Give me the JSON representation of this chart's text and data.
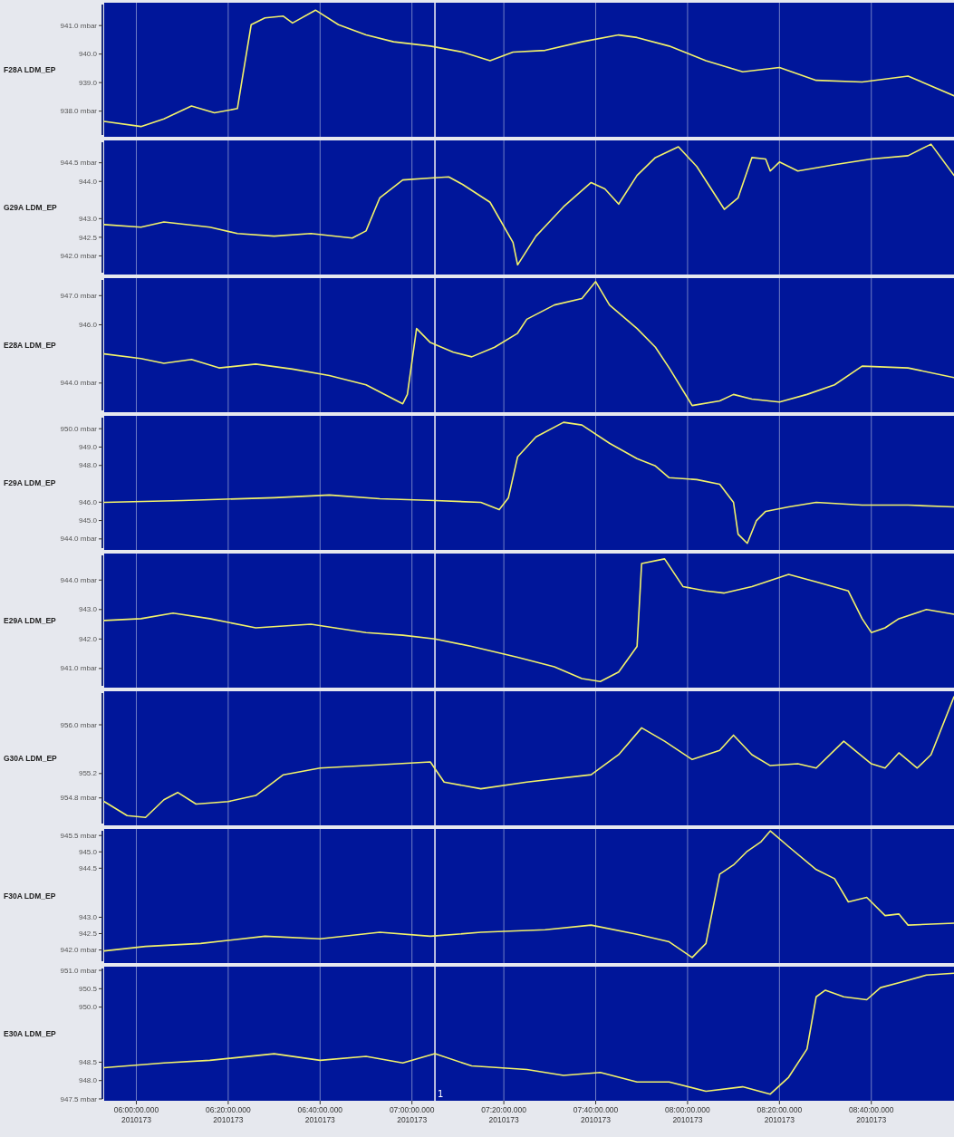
{
  "chart_data": [
    {
      "type": "line",
      "ylabel": "F28A LDM_EP",
      "color": "#f2f26a",
      "grid": "x",
      "tick_labels": "y",
      "xlim": [
        "2010-06-22T05:53",
        "2010-06-22T08:58"
      ],
      "xticks": [
        {
          "value": "2010-06-22T06:00",
          "label": null
        },
        {
          "value": "2010-06-22T06:20",
          "label": null
        },
        {
          "value": "2010-06-22T06:40",
          "label": null
        },
        {
          "value": "2010-06-22T07:00",
          "label": null
        },
        {
          "value": "2010-06-22T07:20",
          "label": null
        },
        {
          "value": "2010-06-22T07:40",
          "label": null
        },
        {
          "value": "2010-06-22T08:00",
          "label": null
        },
        {
          "value": "2010-06-22T08:20",
          "label": null
        },
        {
          "value": "2010-06-22T08:40",
          "label": null
        }
      ],
      "ylim": [
        937.1,
        941.8
      ],
      "yticks": [
        {
          "value": 941,
          "label": "941.0 mbar"
        },
        {
          "value": 940,
          "label": "940.0"
        },
        {
          "value": 939,
          "label": "939.0"
        },
        {
          "value": 938,
          "label": "938.0 mbar"
        }
      ],
      "ref_lines": [
        {
          "axis": "x",
          "value": "2010-06-22T07:05",
          "color": "#e8e8f0"
        }
      ],
      "x": [
        "2010-06-22T05:53",
        "2010-06-22T06:01",
        "2010-06-22T06:06",
        "2010-06-22T06:12",
        "2010-06-22T06:17",
        "2010-06-22T06:22",
        "2010-06-22T06:23",
        "2010-06-22T06:25",
        "2010-06-22T06:28",
        "2010-06-22T06:32",
        "2010-06-22T06:34",
        "2010-06-22T06:39",
        "2010-06-22T06:44",
        "2010-06-22T06:50",
        "2010-06-22T06:56",
        "2010-06-22T07:04",
        "2010-06-22T07:11",
        "2010-06-22T07:17",
        "2010-06-22T07:22",
        "2010-06-22T07:29",
        "2010-06-22T07:37",
        "2010-06-22T07:45",
        "2010-06-22T07:49",
        "2010-06-22T07:56",
        "2010-06-22T08:04",
        "2010-06-22T08:12",
        "2010-06-22T08:20",
        "2010-06-22T08:28",
        "2010-06-22T08:38",
        "2010-06-22T08:48",
        "2010-06-22T08:58"
      ],
      "values": [
        937.64,
        937.46,
        937.73,
        938.18,
        937.94,
        938.09,
        939.08,
        941.03,
        941.27,
        941.33,
        941.09,
        941.54,
        941.03,
        940.67,
        940.43,
        940.28,
        940.07,
        939.77,
        940.07,
        940.13,
        940.43,
        940.67,
        940.58,
        940.28,
        939.77,
        939.38,
        939.53,
        939.08,
        939.02,
        939.23,
        938.54
      ]
    },
    {
      "type": "line",
      "ylabel": "G29A LDM_EP",
      "color": "#f2f26a",
      "grid": "x",
      "tick_labels": "y",
      "xlim": [
        "2010-06-22T05:53",
        "2010-06-22T08:58"
      ],
      "xticks": [
        {
          "value": "2010-06-22T06:00",
          "label": null
        },
        {
          "value": "2010-06-22T06:20",
          "label": null
        },
        {
          "value": "2010-06-22T06:40",
          "label": null
        },
        {
          "value": "2010-06-22T07:00",
          "label": null
        },
        {
          "value": "2010-06-22T07:20",
          "label": null
        },
        {
          "value": "2010-06-22T07:40",
          "label": null
        },
        {
          "value": "2010-06-22T08:00",
          "label": null
        },
        {
          "value": "2010-06-22T08:20",
          "label": null
        },
        {
          "value": "2010-06-22T08:40",
          "label": null
        }
      ],
      "ylim": [
        941.5,
        945.1
      ],
      "yticks": [
        {
          "value": 944.5,
          "label": "944.5 mbar"
        },
        {
          "value": 944,
          "label": "944.0"
        },
        {
          "value": 943,
          "label": "943.0"
        },
        {
          "value": 942.5,
          "label": "942.5"
        },
        {
          "value": 942,
          "label": "942.0 mbar"
        }
      ],
      "ref_lines": [
        {
          "axis": "x",
          "value": "2010-06-22T07:05",
          "color": "#e8e8f0"
        }
      ],
      "x": [
        "2010-06-22T05:53",
        "2010-06-22T06:01",
        "2010-06-22T06:06",
        "2010-06-22T06:16",
        "2010-06-22T06:22",
        "2010-06-22T06:30",
        "2010-06-22T06:38",
        "2010-06-22T06:47",
        "2010-06-22T06:50",
        "2010-06-22T06:53",
        "2010-06-22T06:58",
        "2010-06-22T07:04",
        "2010-06-22T07:08",
        "2010-06-22T07:11",
        "2010-06-22T07:17",
        "2010-06-22T07:22",
        "2010-06-22T07:23",
        "2010-06-22T07:27",
        "2010-06-22T07:33",
        "2010-06-22T07:39",
        "2010-06-22T07:42",
        "2010-06-22T07:45",
        "2010-06-22T07:49",
        "2010-06-22T07:53",
        "2010-06-22T07:58",
        "2010-06-22T08:02",
        "2010-06-22T08:08",
        "2010-06-22T08:11",
        "2010-06-22T08:14",
        "2010-06-22T08:17",
        "2010-06-22T08:18",
        "2010-06-22T08:20",
        "2010-06-22T08:24",
        "2010-06-22T08:32",
        "2010-06-22T08:40",
        "2010-06-22T08:48",
        "2010-06-22T08:53",
        "2010-06-22T08:58"
      ],
      "values": [
        942.84,
        942.77,
        942.91,
        942.77,
        942.6,
        942.53,
        942.6,
        942.48,
        942.67,
        943.56,
        944.04,
        944.09,
        944.12,
        943.92,
        943.44,
        942.36,
        941.76,
        942.53,
        943.32,
        943.97,
        943.8,
        943.39,
        944.16,
        944.64,
        944.93,
        944.4,
        943.25,
        943.56,
        944.64,
        944.6,
        944.28,
        944.52,
        944.28,
        944.45,
        944.6,
        944.69,
        945.0,
        944.16
      ]
    },
    {
      "type": "line",
      "ylabel": "E28A LDM_EP",
      "color": "#f2f26a",
      "grid": "x",
      "tick_labels": "y",
      "xlim": [
        "2010-06-22T05:53",
        "2010-06-22T08:58"
      ],
      "xticks": [
        {
          "value": "2010-06-22T06:00",
          "label": null
        },
        {
          "value": "2010-06-22T06:20",
          "label": null
        },
        {
          "value": "2010-06-22T06:40",
          "label": null
        },
        {
          "value": "2010-06-22T07:00",
          "label": null
        },
        {
          "value": "2010-06-22T07:20",
          "label": null
        },
        {
          "value": "2010-06-22T07:40",
          "label": null
        },
        {
          "value": "2010-06-22T08:00",
          "label": null
        },
        {
          "value": "2010-06-22T08:20",
          "label": null
        },
        {
          "value": "2010-06-22T08:40",
          "label": null
        }
      ],
      "ylim": [
        943.0,
        947.6
      ],
      "yticks": [
        {
          "value": 947,
          "label": "947.0 mbar"
        },
        {
          "value": 946,
          "label": "946.0"
        },
        {
          "value": 944,
          "label": "944.0 mbar"
        }
      ],
      "ref_lines": [
        {
          "axis": "x",
          "value": "2010-06-22T07:05",
          "color": "#e8e8f0"
        }
      ],
      "x": [
        "2010-06-22T05:53",
        "2010-06-22T06:01",
        "2010-06-22T06:06",
        "2010-06-22T06:12",
        "2010-06-22T06:18",
        "2010-06-22T06:26",
        "2010-06-22T06:34",
        "2010-06-22T06:42",
        "2010-06-22T06:50",
        "2010-06-22T06:58",
        "2010-06-22T06:59",
        "2010-06-22T07:01",
        "2010-06-22T07:04",
        "2010-06-22T07:09",
        "2010-06-22T07:13",
        "2010-06-22T07:18",
        "2010-06-22T07:23",
        "2010-06-22T07:25",
        "2010-06-22T07:31",
        "2010-06-22T07:37",
        "2010-06-22T07:40",
        "2010-06-22T07:43",
        "2010-06-22T07:49",
        "2010-06-22T07:53",
        "2010-06-22T07:56",
        "2010-06-22T08:01",
        "2010-06-22T08:07",
        "2010-06-22T08:10",
        "2010-06-22T08:14",
        "2010-06-22T08:20",
        "2010-06-22T08:26",
        "2010-06-22T08:32",
        "2010-06-22T08:38",
        "2010-06-22T08:48",
        "2010-06-22T08:58"
      ],
      "values": [
        945.0,
        944.84,
        944.68,
        944.81,
        944.52,
        944.65,
        944.48,
        944.26,
        943.94,
        943.29,
        943.61,
        945.87,
        945.39,
        945.06,
        944.9,
        945.23,
        945.71,
        946.19,
        946.68,
        946.9,
        947.48,
        946.68,
        945.87,
        945.23,
        944.52,
        943.23,
        943.39,
        943.61,
        943.45,
        943.35,
        943.61,
        943.94,
        944.58,
        944.52,
        944.19
      ]
    },
    {
      "type": "line",
      "ylabel": "F29A LDM_EP",
      "color": "#f2f26a",
      "grid": "x",
      "tick_labels": "y",
      "xlim": [
        "2010-06-22T05:53",
        "2010-06-22T08:58"
      ],
      "xticks": [
        {
          "value": "2010-06-22T06:00",
          "label": null
        },
        {
          "value": "2010-06-22T06:20",
          "label": null
        },
        {
          "value": "2010-06-22T06:40",
          "label": null
        },
        {
          "value": "2010-06-22T07:00",
          "label": null
        },
        {
          "value": "2010-06-22T07:20",
          "label": null
        },
        {
          "value": "2010-06-22T07:40",
          "label": null
        },
        {
          "value": "2010-06-22T08:00",
          "label": null
        },
        {
          "value": "2010-06-22T08:20",
          "label": null
        },
        {
          "value": "2010-06-22T08:40",
          "label": null
        }
      ],
      "ylim": [
        943.4,
        950.7
      ],
      "yticks": [
        {
          "value": 950,
          "label": "950.0 mbar"
        },
        {
          "value": 949,
          "label": "949.0"
        },
        {
          "value": 948,
          "label": "948.0"
        },
        {
          "value": 946,
          "label": "946.0"
        },
        {
          "value": 945,
          "label": "945.0"
        },
        {
          "value": 944,
          "label": "944.0 mbar"
        }
      ],
      "ref_lines": [
        {
          "axis": "x",
          "value": "2010-06-22T07:05",
          "color": "#e8e8f0"
        }
      ],
      "x": [
        "2010-06-22T05:53",
        "2010-06-22T06:10",
        "2010-06-22T06:30",
        "2010-06-22T06:42",
        "2010-06-22T06:53",
        "2010-06-22T07:05",
        "2010-06-22T07:15",
        "2010-06-22T07:19",
        "2010-06-22T07:21",
        "2010-06-22T07:23",
        "2010-06-22T07:27",
        "2010-06-22T07:33",
        "2010-06-22T07:37",
        "2010-06-22T07:43",
        "2010-06-22T07:49",
        "2010-06-22T07:53",
        "2010-06-22T07:56",
        "2010-06-22T08:02",
        "2010-06-22T08:07",
        "2010-06-22T08:10",
        "2010-06-22T08:11",
        "2010-06-22T08:13",
        "2010-06-22T08:15",
        "2010-06-22T08:17",
        "2010-06-22T08:22",
        "2010-06-22T08:28",
        "2010-06-22T08:38",
        "2010-06-22T08:48",
        "2010-06-22T08:58"
      ],
      "values": [
        945.99,
        946.09,
        946.24,
        946.39,
        946.19,
        946.09,
        945.99,
        945.59,
        946.24,
        948.47,
        949.55,
        950.35,
        950.2,
        949.21,
        948.37,
        947.97,
        947.33,
        947.23,
        946.98,
        945.99,
        944.26,
        943.76,
        945.0,
        945.5,
        945.74,
        945.99,
        945.84,
        945.84,
        945.74
      ]
    },
    {
      "type": "line",
      "ylabel": "E29A LDM_EP",
      "color": "#f2f26a",
      "grid": "x",
      "tick_labels": "y",
      "xlim": [
        "2010-06-22T05:53",
        "2010-06-22T08:58"
      ],
      "xticks": [
        {
          "value": "2010-06-22T06:00",
          "label": null
        },
        {
          "value": "2010-06-22T06:20",
          "label": null
        },
        {
          "value": "2010-06-22T06:40",
          "label": null
        },
        {
          "value": "2010-06-22T07:00",
          "label": null
        },
        {
          "value": "2010-06-22T07:20",
          "label": null
        },
        {
          "value": "2010-06-22T07:40",
          "label": null
        },
        {
          "value": "2010-06-22T08:00",
          "label": null
        },
        {
          "value": "2010-06-22T08:20",
          "label": null
        },
        {
          "value": "2010-06-22T08:40",
          "label": null
        }
      ],
      "ylim": [
        940.35,
        944.9
      ],
      "yticks": [
        {
          "value": 944,
          "label": "944.0 mbar"
        },
        {
          "value": 943,
          "label": "943.0"
        },
        {
          "value": 942,
          "label": "942.0"
        },
        {
          "value": 941,
          "label": "941.0 mbar"
        }
      ],
      "ref_lines": [
        {
          "axis": "x",
          "value": "2010-06-22T07:05",
          "color": "#e8e8f0"
        }
      ],
      "x": [
        "2010-06-22T05:53",
        "2010-06-22T06:01",
        "2010-06-22T06:08",
        "2010-06-22T06:16",
        "2010-06-22T06:26",
        "2010-06-22T06:38",
        "2010-06-22T06:50",
        "2010-06-22T06:58",
        "2010-06-22T07:05",
        "2010-06-22T07:13",
        "2010-06-22T07:23",
        "2010-06-22T07:31",
        "2010-06-22T07:37",
        "2010-06-22T07:41",
        "2010-06-22T07:45",
        "2010-06-22T07:49",
        "2010-06-22T07:50",
        "2010-06-22T07:55",
        "2010-06-22T07:59",
        "2010-06-22T08:04",
        "2010-06-22T08:08",
        "2010-06-22T08:14",
        "2010-06-22T08:22",
        "2010-06-22T08:28",
        "2010-06-22T08:35",
        "2010-06-22T08:38",
        "2010-06-22T08:40",
        "2010-06-22T08:43",
        "2010-06-22T08:46",
        "2010-06-22T08:52",
        "2010-06-22T08:58"
      ],
      "values": [
        942.63,
        942.69,
        942.88,
        942.69,
        942.38,
        942.5,
        942.22,
        942.13,
        942.0,
        941.75,
        941.38,
        941.06,
        940.66,
        940.56,
        940.88,
        941.75,
        944.56,
        944.72,
        943.78,
        943.63,
        943.56,
        943.78,
        944.19,
        943.94,
        943.63,
        942.69,
        942.22,
        942.38,
        942.69,
        943.0,
        942.84
      ]
    },
    {
      "type": "line",
      "ylabel": "G30A LDM_EP",
      "color": "#f2f26a",
      "grid": "x",
      "tick_labels": "y",
      "xlim": [
        "2010-06-22T05:53",
        "2010-06-22T08:58"
      ],
      "xticks": [
        {
          "value": "2010-06-22T06:00",
          "label": null
        },
        {
          "value": "2010-06-22T06:20",
          "label": null
        },
        {
          "value": "2010-06-22T06:40",
          "label": null
        },
        {
          "value": "2010-06-22T07:00",
          "label": null
        },
        {
          "value": "2010-06-22T07:20",
          "label": null
        },
        {
          "value": "2010-06-22T07:40",
          "label": null
        },
        {
          "value": "2010-06-22T08:00",
          "label": null
        },
        {
          "value": "2010-06-22T08:20",
          "label": null
        },
        {
          "value": "2010-06-22T08:40",
          "label": null
        }
      ],
      "ylim": [
        954.35,
        956.55
      ],
      "yticks": [
        {
          "value": 956,
          "label": "956.0 mbar"
        },
        {
          "value": 955.2,
          "label": "955.2"
        },
        {
          "value": 954.8,
          "label": "954.8 mbar"
        }
      ],
      "ref_lines": [
        {
          "axis": "x",
          "value": "2010-06-22T07:05",
          "color": "#e8e8f0"
        }
      ],
      "x": [
        "2010-06-22T05:53",
        "2010-06-22T05:58",
        "2010-06-22T06:02",
        "2010-06-22T06:06",
        "2010-06-22T06:09",
        "2010-06-22T06:13",
        "2010-06-22T06:20",
        "2010-06-22T06:26",
        "2010-06-22T06:32",
        "2010-06-22T06:40",
        "2010-06-22T06:50",
        "2010-06-22T07:04",
        "2010-06-22T07:07",
        "2010-06-22T07:15",
        "2010-06-22T07:25",
        "2010-06-22T07:39",
        "2010-06-22T07:45",
        "2010-06-22T07:50",
        "2010-06-22T07:55",
        "2010-06-22T08:01",
        "2010-06-22T08:07",
        "2010-06-22T08:10",
        "2010-06-22T08:14",
        "2010-06-22T08:18",
        "2010-06-22T08:24",
        "2010-06-22T08:28",
        "2010-06-22T08:34",
        "2010-06-22T08:40",
        "2010-06-22T08:43",
        "2010-06-22T08:46",
        "2010-06-22T08:50",
        "2010-06-22T08:53",
        "2010-06-22T08:58"
      ],
      "values": [
        954.74,
        954.51,
        954.48,
        954.77,
        954.89,
        954.7,
        954.74,
        954.84,
        955.18,
        955.29,
        955.33,
        955.39,
        955.06,
        954.95,
        955.06,
        955.18,
        955.51,
        955.95,
        955.73,
        955.43,
        955.58,
        955.83,
        955.51,
        955.33,
        955.36,
        955.29,
        955.73,
        955.36,
        955.29,
        955.54,
        955.29,
        955.51,
        956.46
      ]
    },
    {
      "type": "line",
      "ylabel": "F30A LDM_EP",
      "color": "#f2f26a",
      "grid": "x",
      "tick_labels": "y",
      "xlim": [
        "2010-06-22T05:53",
        "2010-06-22T08:58"
      ],
      "xticks": [
        {
          "value": "2010-06-22T06:00",
          "label": null
        },
        {
          "value": "2010-06-22T06:20",
          "label": null
        },
        {
          "value": "2010-06-22T06:40",
          "label": null
        },
        {
          "value": "2010-06-22T07:00",
          "label": null
        },
        {
          "value": "2010-06-22T07:20",
          "label": null
        },
        {
          "value": "2010-06-22T07:40",
          "label": null
        },
        {
          "value": "2010-06-22T08:00",
          "label": null
        },
        {
          "value": "2010-06-22T08:20",
          "label": null
        },
        {
          "value": "2010-06-22T08:40",
          "label": null
        }
      ],
      "ylim": [
        941.6,
        945.7
      ],
      "yticks": [
        {
          "value": 945.5,
          "label": "945.5 mbar"
        },
        {
          "value": 945,
          "label": "945.0"
        },
        {
          "value": 944.5,
          "label": "944.5"
        },
        {
          "value": 943,
          "label": "943.0"
        },
        {
          "value": 942.5,
          "label": "942.5"
        },
        {
          "value": 942,
          "label": "942.0 mbar"
        }
      ],
      "ref_lines": [
        {
          "axis": "x",
          "value": "2010-06-22T07:05",
          "color": "#e8e8f0"
        }
      ],
      "x": [
        "2010-06-22T05:53",
        "2010-06-22T06:02",
        "2010-06-22T06:14",
        "2010-06-22T06:28",
        "2010-06-22T06:40",
        "2010-06-22T06:53",
        "2010-06-22T07:04",
        "2010-06-22T07:15",
        "2010-06-22T07:29",
        "2010-06-22T07:39",
        "2010-06-22T07:49",
        "2010-06-22T07:56",
        "2010-06-22T08:01",
        "2010-06-22T08:04",
        "2010-06-22T08:07",
        "2010-06-22T08:10",
        "2010-06-22T08:13",
        "2010-06-22T08:16",
        "2010-06-22T08:18",
        "2010-06-22T08:22",
        "2010-06-22T08:28",
        "2010-06-22T08:32",
        "2010-06-22T08:35",
        "2010-06-22T08:39",
        "2010-06-22T08:43",
        "2010-06-22T08:46",
        "2010-06-22T08:48",
        "2010-06-22T08:58"
      ],
      "values": [
        941.97,
        942.11,
        942.2,
        942.42,
        942.34,
        942.54,
        942.42,
        942.54,
        942.62,
        942.76,
        942.48,
        942.25,
        941.77,
        942.2,
        944.32,
        944.6,
        945.02,
        945.31,
        945.64,
        945.16,
        944.46,
        944.18,
        943.47,
        943.61,
        943.05,
        943.1,
        942.76,
        942.82
      ]
    },
    {
      "type": "line",
      "ylabel": "E30A LDM_EP",
      "color": "#f2f26a",
      "grid": "x",
      "xlim": [
        "2010-06-22T05:53",
        "2010-06-22T08:58"
      ],
      "xticks": [
        {
          "value": "2010-06-22T06:00",
          "label": "06:00:00.000\n2010173"
        },
        {
          "value": "2010-06-22T06:20",
          "label": "06:20:00.000\n2010173"
        },
        {
          "value": "2010-06-22T06:40",
          "label": "06:40:00.000\n2010173"
        },
        {
          "value": "2010-06-22T07:00",
          "label": "07:00:00.000\n2010173"
        },
        {
          "value": "2010-06-22T07:20",
          "label": "07:20:00.000\n2010173"
        },
        {
          "value": "2010-06-22T07:40",
          "label": "07:40:00.000\n2010173"
        },
        {
          "value": "2010-06-22T08:00",
          "label": "08:00:00.000\n2010173"
        },
        {
          "value": "2010-06-22T08:20",
          "label": "08:20:00.000\n2010173"
        },
        {
          "value": "2010-06-22T08:40",
          "label": "08:40:00.000\n2010173"
        }
      ],
      "ylim": [
        947.45,
        951.1
      ],
      "yticks": [
        {
          "value": 951,
          "label": "951.0 mbar"
        },
        {
          "value": 950.5,
          "label": "950.5"
        },
        {
          "value": 950,
          "label": "950.0"
        },
        {
          "value": 948.5,
          "label": "948.5"
        },
        {
          "value": 948,
          "label": "948.0"
        },
        {
          "value": 947.5,
          "label": "947.5 mbar"
        }
      ],
      "ref_lines": [
        {
          "axis": "x",
          "value": "2010-06-22T07:05",
          "color": "#e8e8f0"
        }
      ],
      "annotations": [
        "1"
      ],
      "x": [
        "2010-06-22T05:53",
        "2010-06-22T06:06",
        "2010-06-22T06:16",
        "2010-06-22T06:30",
        "2010-06-22T06:40",
        "2010-06-22T06:50",
        "2010-06-22T06:58",
        "2010-06-22T07:05",
        "2010-06-22T07:13",
        "2010-06-22T07:25",
        "2010-06-22T07:33",
        "2010-06-22T07:41",
        "2010-06-22T07:49",
        "2010-06-22T07:56",
        "2010-06-22T08:04",
        "2010-06-22T08:12",
        "2010-06-22T08:18",
        "2010-06-22T08:22",
        "2010-06-22T08:26",
        "2010-06-22T08:28",
        "2010-06-22T08:30",
        "2010-06-22T08:34",
        "2010-06-22T08:39",
        "2010-06-22T08:42",
        "2010-06-22T08:46",
        "2010-06-22T08:52",
        "2010-06-22T08:58"
      ],
      "values": [
        948.35,
        948.48,
        948.55,
        948.73,
        948.55,
        948.66,
        948.48,
        948.73,
        948.4,
        948.3,
        948.14,
        948.22,
        947.96,
        947.96,
        947.71,
        947.83,
        947.63,
        948.09,
        948.86,
        950.28,
        950.46,
        950.28,
        950.2,
        950.53,
        950.66,
        950.87,
        950.92
      ]
    }
  ]
}
